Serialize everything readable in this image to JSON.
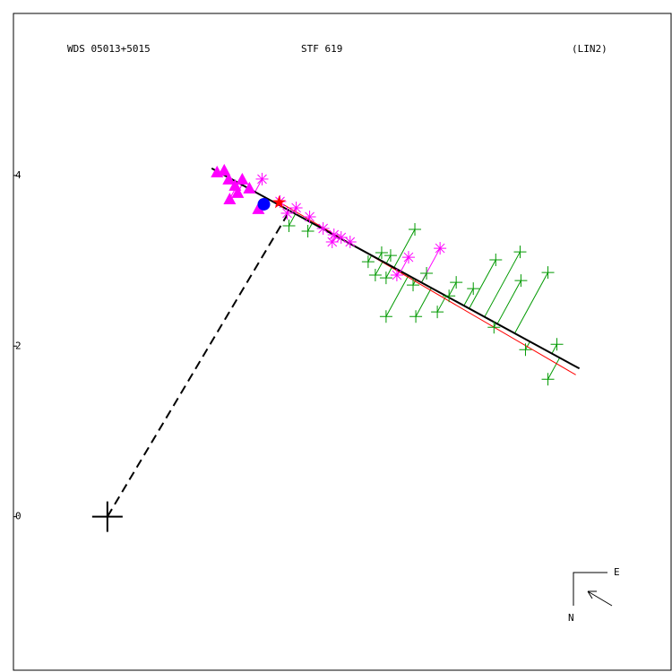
{
  "chart_data": {
    "type": "scatter",
    "title": "WDS 05013+5015",
    "subtitle": "STF 619",
    "annotation": "(LIN2)",
    "compass": {
      "east": "E",
      "north": "N"
    },
    "xlim": [
      -1.1,
      6.6
    ],
    "ylim": [
      -1.8,
      5.9
    ],
    "yticks": [
      0,
      2,
      4
    ],
    "series": [
      {
        "marker": "triangle",
        "color": "#ff00ff",
        "x": [
          1.284,
          1.368,
          1.421,
          1.495,
          1.432,
          1.579,
          1.663,
          1.768,
          1.526
        ],
        "y": [
          4.042,
          4.063,
          3.958,
          3.884,
          3.726,
          3.958,
          3.853,
          3.611,
          3.8
        ]
      },
      {
        "marker": "asterisk",
        "color": "#ff00ff",
        "x": [
          1.811,
          2.021,
          2.211,
          2.368,
          2.526,
          2.653,
          2.737,
          2.842,
          2.632,
          2.105,
          3.526,
          3.895,
          3.389
        ],
        "y": [
          3.958,
          3.695,
          3.621,
          3.516,
          3.379,
          3.305,
          3.274,
          3.221,
          3.221,
          3.558,
          3.042,
          3.147,
          2.832
        ]
      },
      {
        "marker": "plus",
        "color": "#009900",
        "x": [
          2.126,
          2.347,
          3.053,
          3.211,
          3.316,
          3.6,
          3.137,
          3.263,
          3.737,
          3.579,
          3.263,
          3.611,
          3.863,
          4.084,
          4.284,
          4.547,
          4.832,
          5.158,
          4.842,
          4.526,
          4.895,
          5.263,
          5.158,
          4.0
        ],
        "y": [
          3.411,
          3.347,
          2.989,
          3.095,
          3.063,
          3.368,
          2.832,
          2.8,
          2.853,
          2.716,
          2.347,
          2.347,
          2.4,
          2.747,
          2.674,
          3.011,
          3.105,
          2.863,
          2.768,
          2.221,
          1.958,
          2.021,
          1.611,
          2.589
        ]
      },
      {
        "marker": "star",
        "color": "#ff0000",
        "x": [
          2.011
        ],
        "y": [
          3.684
        ]
      },
      {
        "marker": "circle",
        "color": "#0000ff",
        "x": [
          1.832
        ],
        "y": [
          3.663
        ]
      }
    ],
    "lines": [
      {
        "color": "#ff0000",
        "style": "solid",
        "x": [
          2.0,
          5.484
        ],
        "y": [
          3.695,
          1.663
        ]
      },
      {
        "color": "#000000",
        "style": "solid",
        "x": [
          1.221,
          5.526
        ],
        "y": [
          4.084,
          1.737
        ]
      },
      {
        "color": "#000000",
        "style": "dashed",
        "x": [
          0,
          2.105
        ],
        "y": [
          0,
          3.537
        ]
      }
    ]
  }
}
